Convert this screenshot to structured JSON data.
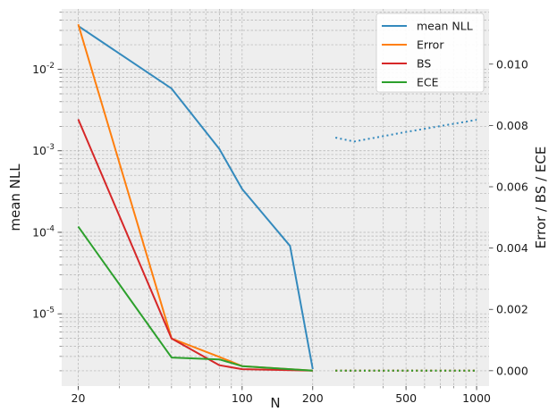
{
  "chart_data": {
    "type": "line",
    "xlabel": "N",
    "ylabel_left": "mean NLL",
    "ylabel_right": "Error / BS / ECE",
    "x_scale": "log",
    "x_range": [
      17,
      1130
    ],
    "x_ticks": [
      20,
      100,
      200,
      500,
      1000
    ],
    "y_left_scale": "log",
    "y_left_range": [
      1.3e-06,
      0.055
    ],
    "y_left_ticks": [
      1e-05,
      0.0001,
      0.001,
      0.01
    ],
    "y_left_tick_labels": [
      "10^-5",
      "10^-4",
      "10^-3",
      "10^-2"
    ],
    "y_right_range": [
      -0.0005,
      0.0118
    ],
    "y_right_ticks": [
      0.0,
      0.002,
      0.004,
      0.006,
      0.008,
      0.01
    ],
    "y_right_tick_labels": [
      "0.000",
      "0.002",
      "0.004",
      "0.006",
      "0.008",
      "0.010"
    ],
    "grid": true,
    "legend_position": "top-right",
    "series": [
      {
        "name": "mean NLL",
        "axis": "left",
        "color": "#348abd",
        "solid": {
          "x": [
            20,
            50,
            80,
            100,
            160,
            200
          ],
          "y": [
            0.034,
            0.0058,
            0.00105,
            0.00034,
            6.8e-05,
            2.1e-06
          ]
        },
        "dotted": {
          "x": [
            250,
            300,
            500,
            1000
          ],
          "y": [
            0.00145,
            0.0013,
            0.0017,
            0.0024
          ]
        }
      },
      {
        "name": "Error",
        "axis": "right",
        "color": "#ff7f0e",
        "solid": {
          "x": [
            20,
            50,
            80,
            100,
            200
          ],
          "y": [
            0.0113,
            0.00105,
            0.00045,
            0.00015,
            0.0
          ]
        },
        "dotted": {
          "x": [
            250,
            1000
          ],
          "y": [
            0.0,
            0.0
          ]
        }
      },
      {
        "name": "BS",
        "axis": "right",
        "color": "#d62728",
        "solid": {
          "x": [
            20,
            50,
            80,
            100,
            200
          ],
          "y": [
            0.0082,
            0.00105,
            0.00018,
            5e-05,
            0.0
          ]
        },
        "dotted": {
          "x": [
            250,
            1000
          ],
          "y": [
            0.0,
            0.0
          ]
        }
      },
      {
        "name": "ECE",
        "axis": "right",
        "color": "#2ca02c",
        "solid": {
          "x": [
            20,
            50,
            80,
            100,
            200
          ],
          "y": [
            0.0047,
            0.00043,
            0.00037,
            0.00015,
            0.0
          ]
        },
        "dotted": {
          "x": [
            250,
            1000
          ],
          "y": [
            0.0,
            0.0
          ]
        }
      }
    ]
  }
}
